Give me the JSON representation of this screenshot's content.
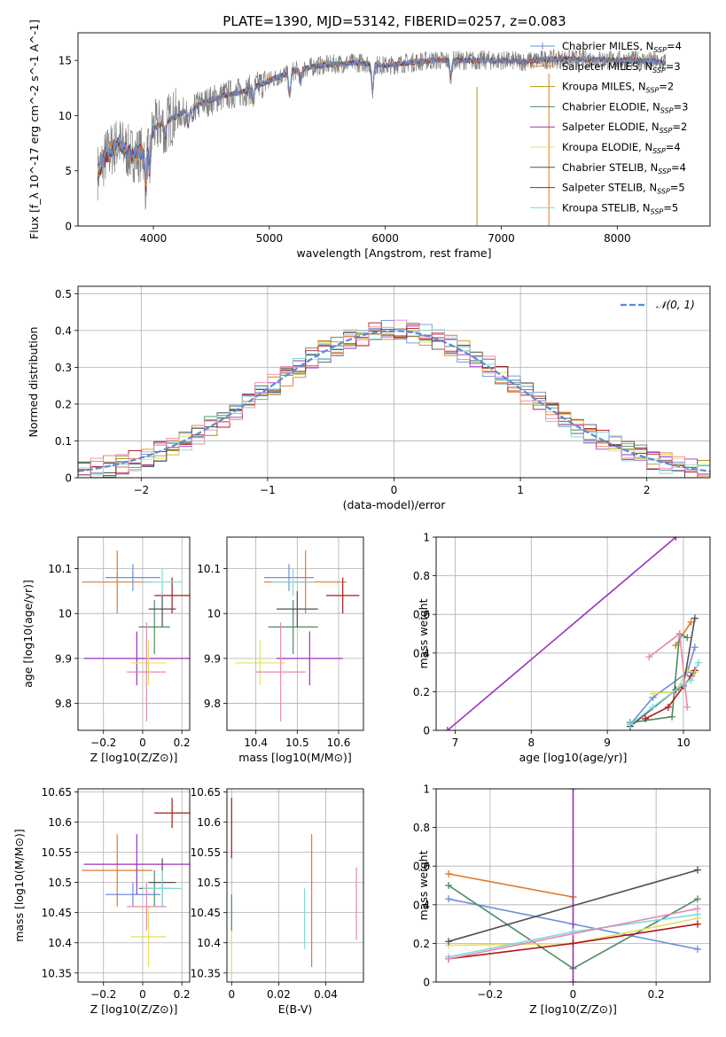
{
  "title": "PLATE=1390, MJD=53142, FIBERID=0257, z=0.083",
  "colors": {
    "Chabrier MILES": "#6a8fdb",
    "Salpeter MILES": "#e07b2a",
    "Kroupa MILES": "#b8960e",
    "Chabrier ELODIE": "#4e8a60",
    "Salpeter ELODIE": "#9b30c0",
    "Kroupa ELODIE": "#e6e060",
    "Chabrier STELIB": "#505050",
    "Salpeter STELIB": "#b01818",
    "Kroupa STELIB": "#7fdada",
    "data": "#808080",
    "pink": "#e888b0",
    "gauss": "#5b8ad6"
  },
  "chart_data": [
    {
      "type": "line",
      "panel": "spectrum",
      "xlabel": "wavelength [Angstrom, rest frame]",
      "ylabel": "Flux [f_λ 10^-17 erg cm^-2 s^-1 A^-1]",
      "xlim": [
        3350,
        8800
      ],
      "ylim": [
        0,
        17.5
      ],
      "xticks": [
        4000,
        5000,
        6000,
        7000,
        8000
      ],
      "yticks": [
        0,
        5,
        10,
        15
      ],
      "continuum_x": [
        3500,
        3600,
        3700,
        3800,
        3900,
        4000,
        4200,
        4400,
        4600,
        4800,
        5000,
        5200,
        5400,
        5600,
        5800,
        6000,
        6200,
        6400,
        6600,
        6800,
        7000,
        7200,
        7400,
        7600,
        7800,
        8000,
        8200,
        8400
      ],
      "continuum_y": [
        4.5,
        6.5,
        7.5,
        6.5,
        6.5,
        8.8,
        10.0,
        11.0,
        11.8,
        12.2,
        13.2,
        14.0,
        14.5,
        14.7,
        14.8,
        14.5,
        14.8,
        15.0,
        15.0,
        15.0,
        15.0,
        14.9,
        15.1,
        15.1,
        15.1,
        15.0,
        15.0,
        14.8
      ],
      "legend": [
        {
          "label": "Chabrier MILES, N",
          "sub": "SSP",
          "eq": "=4"
        },
        {
          "label": "Salpeter MILES, N",
          "sub": "SSP",
          "eq": "=3"
        },
        {
          "label": "Kroupa MILES, N",
          "sub": "SSP",
          "eq": "=2"
        },
        {
          "label": "Chabrier ELODIE, N",
          "sub": "SSP",
          "eq": "=3"
        },
        {
          "label": "Salpeter ELODIE, N",
          "sub": "SSP",
          "eq": "=2"
        },
        {
          "label": "Kroupa ELODIE, N",
          "sub": "SSP",
          "eq": "=4"
        },
        {
          "label": "Chabrier STELIB, N",
          "sub": "SSP",
          "eq": "=4"
        },
        {
          "label": "Salpeter STELIB, N",
          "sub": "SSP",
          "eq": "=5"
        },
        {
          "label": "Kroupa STELIB, N",
          "sub": "SSP",
          "eq": "=5"
        }
      ],
      "legend_placement": "right"
    },
    {
      "type": "line",
      "panel": "residuals",
      "xlabel": "(data-model)/error",
      "ylabel": "Normed distribution",
      "xlim": [
        -2.5,
        2.5
      ],
      "ylim": [
        0,
        0.52
      ],
      "xticks": [
        -2,
        -1,
        0,
        1,
        2
      ],
      "yticks": [
        0.0,
        0.1,
        0.2,
        0.3,
        0.4,
        0.5
      ],
      "legend": [
        "𝒩(0, 1)"
      ],
      "grid": true
    },
    {
      "type": "scatter",
      "panel": "Z-age",
      "xlabel": "Z [log10(Z/Z⊙)]",
      "ylabel": "age [log10(age/yr)]",
      "xlim": [
        -0.33,
        0.24
      ],
      "ylim": [
        9.74,
        10.17
      ],
      "xticks": [
        -0.2,
        0.0,
        0.2
      ],
      "yticks": [
        9.8,
        9.9,
        10.0,
        10.1
      ],
      "points": [
        {
          "series": "Chabrier MILES",
          "x": -0.05,
          "xerr": 0.14,
          "y": 10.08,
          "yerr": 0.03
        },
        {
          "series": "Salpeter MILES",
          "x": -0.13,
          "xerr": 0.18,
          "y": 10.07,
          "yerr": 0.07
        },
        {
          "series": "Chabrier ELODIE",
          "x": 0.06,
          "xerr": 0.08,
          "y": 9.97,
          "yerr": 0.06
        },
        {
          "series": "Salpeter ELODIE",
          "x": -0.03,
          "xerr": 0.27,
          "y": 9.9,
          "yerr": 0.06
        },
        {
          "series": "Kroupa ELODIE",
          "x": 0.03,
          "xerr": 0.09,
          "y": 9.89,
          "yerr": 0.05
        },
        {
          "series": "Chabrier STELIB",
          "x": 0.1,
          "xerr": 0.07,
          "y": 10.01,
          "yerr": 0.04
        },
        {
          "series": "Salpeter STELIB",
          "x": 0.15,
          "xerr": 0.09,
          "y": 10.04,
          "yerr": 0.04
        },
        {
          "series": "Kroupa STELIB",
          "x": 0.1,
          "xerr": 0.1,
          "y": 10.07,
          "yerr": 0.03
        },
        {
          "series": "pink",
          "x": 0.02,
          "xerr": 0.1,
          "y": 9.87,
          "yerr": 0.11
        }
      ]
    },
    {
      "type": "scatter",
      "panel": "mass-age",
      "xlabel": "mass [log10(M/M⊙)]",
      "xlim": [
        10.33,
        10.66
      ],
      "ylim": [
        9.74,
        10.17
      ],
      "xticks": [
        10.4,
        10.5,
        10.6
      ],
      "yticks": [
        9.8,
        9.9,
        10.0,
        10.1
      ],
      "points": [
        {
          "series": "Chabrier MILES",
          "x": 10.48,
          "xerr": 0.06,
          "y": 10.08,
          "yerr": 0.03
        },
        {
          "series": "Salpeter MILES",
          "x": 10.52,
          "xerr": 0.1,
          "y": 10.07,
          "yerr": 0.07
        },
        {
          "series": "Chabrier ELODIE",
          "x": 10.49,
          "xerr": 0.06,
          "y": 9.97,
          "yerr": 0.06
        },
        {
          "series": "Salpeter ELODIE",
          "x": 10.53,
          "xerr": 0.08,
          "y": 9.9,
          "yerr": 0.06
        },
        {
          "series": "Kroupa ELODIE",
          "x": 10.41,
          "xerr": 0.06,
          "y": 9.89,
          "yerr": 0.05
        },
        {
          "series": "Chabrier STELIB",
          "x": 10.5,
          "xerr": 0.05,
          "y": 10.01,
          "yerr": 0.04
        },
        {
          "series": "Salpeter STELIB",
          "x": 10.61,
          "xerr": 0.04,
          "y": 10.04,
          "yerr": 0.04
        },
        {
          "series": "Kroupa STELIB",
          "x": 10.49,
          "xerr": 0.05,
          "y": 10.07,
          "yerr": 0.03
        },
        {
          "series": "pink",
          "x": 10.46,
          "xerr": 0.06,
          "y": 9.87,
          "yerr": 0.11
        }
      ]
    },
    {
      "type": "line",
      "panel": "age-weight",
      "xlabel": "age [log10(age/yr)]",
      "ylabel": "mass weight",
      "xlim": [
        6.75,
        10.35
      ],
      "ylim": [
        0,
        1
      ],
      "xticks": [
        7,
        8,
        9,
        10
      ],
      "yticks": [
        0.0,
        0.2,
        0.4,
        0.6,
        0.8,
        1.0
      ],
      "series": [
        {
          "name": "Chabrier MILES",
          "x": [
            9.3,
            9.6,
            10.05,
            10.15
          ],
          "y": [
            0.03,
            0.17,
            0.3,
            0.43
          ]
        },
        {
          "name": "Salpeter MILES",
          "x": [
            9.9,
            10.1
          ],
          "y": [
            0.44,
            0.56
          ]
        },
        {
          "name": "Chabrier ELODIE",
          "x": [
            9.3,
            9.85,
            9.95,
            10.05
          ],
          "y": [
            0.04,
            0.07,
            0.5,
            0.48
          ]
        },
        {
          "name": "Salpeter ELODIE",
          "x": [
            6.9,
            9.9
          ],
          "y": [
            0.0,
            1.0
          ]
        },
        {
          "name": "Kroupa ELODIE",
          "x": [
            9.6,
            9.9,
            10.05,
            10.15
          ],
          "y": [
            0.19,
            0.2,
            0.31,
            0.3
          ]
        },
        {
          "name": "Chabrier STELIB",
          "x": [
            9.3,
            9.9,
            10.0,
            10.15
          ],
          "y": [
            0.02,
            0.21,
            0.23,
            0.58
          ]
        },
        {
          "name": "Salpeter STELIB",
          "x": [
            9.5,
            9.8,
            10.1,
            10.15
          ],
          "y": [
            0.06,
            0.12,
            0.28,
            0.31
          ]
        },
        {
          "name": "Kroupa STELIB",
          "x": [
            9.3,
            9.6,
            10.0,
            10.1,
            10.2
          ],
          "y": [
            0.03,
            0.12,
            0.24,
            0.26,
            0.35
          ]
        },
        {
          "name": "pink",
          "x": [
            9.55,
            9.95,
            10.05
          ],
          "y": [
            0.38,
            0.5,
            0.12
          ]
        }
      ]
    },
    {
      "type": "scatter",
      "panel": "Z-mass",
      "xlabel": "Z [log10(Z/Z⊙)]",
      "ylabel": "mass [log10(M/M⊙)]",
      "xlim": [
        -0.33,
        0.24
      ],
      "ylim": [
        10.335,
        10.655
      ],
      "xticks": [
        -0.2,
        0.0,
        0.2
      ],
      "yticks": [
        10.35,
        10.4,
        10.45,
        10.5,
        10.55,
        10.6,
        10.65
      ],
      "points": [
        {
          "series": "Chabrier MILES",
          "x": -0.05,
          "xerr": 0.14,
          "y": 10.48,
          "yerr": 0.02
        },
        {
          "series": "Salpeter MILES",
          "x": -0.13,
          "xerr": 0.18,
          "y": 10.52,
          "yerr": 0.06
        },
        {
          "series": "Chabrier ELODIE",
          "x": 0.06,
          "xerr": 0.08,
          "y": 10.49,
          "yerr": 0.03
        },
        {
          "series": "Salpeter ELODIE",
          "x": -0.03,
          "xerr": 0.27,
          "y": 10.53,
          "yerr": 0.05
        },
        {
          "series": "Kroupa ELODIE",
          "x": 0.03,
          "xerr": 0.09,
          "y": 10.41,
          "yerr": 0.05
        },
        {
          "series": "Chabrier STELIB",
          "x": 0.1,
          "xerr": 0.07,
          "y": 10.5,
          "yerr": 0.04
        },
        {
          "series": "Salpeter STELIB",
          "x": 0.15,
          "xerr": 0.09,
          "y": 10.615,
          "yerr": 0.025
        },
        {
          "series": "Kroupa STELIB",
          "x": 0.1,
          "xerr": 0.1,
          "y": 10.49,
          "yerr": 0.03
        },
        {
          "series": "pink",
          "x": 0.02,
          "xerr": 0.1,
          "y": 10.46,
          "yerr": 0.04
        }
      ]
    },
    {
      "type": "scatter",
      "panel": "EBV-mass",
      "xlabel": "E(B-V)",
      "xlim": [
        -0.002,
        0.056
      ],
      "ylim": [
        10.335,
        10.655
      ],
      "xticks": [
        0.0,
        0.02,
        0.04
      ],
      "yticks": [
        10.35,
        10.4,
        10.45,
        10.5,
        10.55,
        10.6,
        10.65
      ],
      "points": [
        {
          "series": "Salpeter STELIB",
          "x": 0.0,
          "y": 10.59,
          "yerr": 0.05
        },
        {
          "series": "Kroupa ELODIE",
          "x": 0.0,
          "y": 10.38,
          "yerr": 0.04
        },
        {
          "series": "Chabrier ELODIE",
          "x": 0.0,
          "y": 10.45,
          "yerr": 0.03
        },
        {
          "series": "Kroupa STELIB",
          "x": 0.031,
          "y": 10.44,
          "yerr": 0.05
        },
        {
          "series": "Salpeter MILES",
          "x": 0.034,
          "y": 10.47,
          "yerr": 0.11
        },
        {
          "series": "pink",
          "x": 0.053,
          "y": 10.465,
          "yerr": 0.06
        }
      ]
    },
    {
      "type": "line",
      "panel": "Z-weight",
      "xlabel": "Z [log10(Z/Z⊙)]",
      "ylabel": "mass weight",
      "xlim": [
        -0.33,
        0.33
      ],
      "ylim": [
        0,
        1
      ],
      "xticks": [
        -0.2,
        0.0,
        0.2
      ],
      "yticks": [
        0.0,
        0.2,
        0.4,
        0.6,
        0.8,
        1.0
      ],
      "series": [
        {
          "name": "Chabrier MILES",
          "x": [
            -0.3,
            0.0,
            0.3
          ],
          "y": [
            0.43,
            0.3,
            0.17
          ]
        },
        {
          "name": "Salpeter MILES",
          "x": [
            -0.3,
            0.0
          ],
          "y": [
            0.56,
            0.44
          ]
        },
        {
          "name": "Chabrier ELODIE",
          "x": [
            -0.3,
            0.0,
            0.3
          ],
          "y": [
            0.5,
            0.07,
            0.43
          ]
        },
        {
          "name": "Salpeter ELODIE",
          "x": [
            0.0,
            0.0
          ],
          "y": [
            0.0,
            1.0
          ]
        },
        {
          "name": "Kroupa ELODIE",
          "x": [
            -0.3,
            0.0,
            0.3
          ],
          "y": [
            0.19,
            0.2,
            0.33
          ]
        },
        {
          "name": "Chabrier STELIB",
          "x": [
            -0.3,
            0.3
          ],
          "y": [
            0.21,
            0.58
          ]
        },
        {
          "name": "Salpeter STELIB",
          "x": [
            -0.3,
            0.0,
            0.3
          ],
          "y": [
            0.12,
            0.2,
            0.3
          ]
        },
        {
          "name": "Kroupa STELIB",
          "x": [
            -0.3,
            0.0,
            0.3
          ],
          "y": [
            0.13,
            0.26,
            0.35
          ]
        },
        {
          "name": "pink",
          "x": [
            -0.3,
            0.3
          ],
          "y": [
            0.12,
            0.38
          ]
        }
      ]
    }
  ]
}
